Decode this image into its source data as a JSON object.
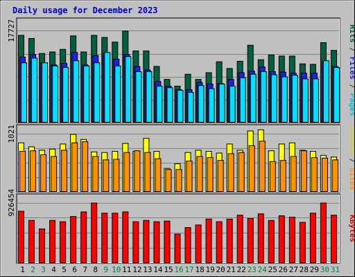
{
  "chart_data": [
    {
      "type": "bar",
      "title": "Daily usage for December 2023",
      "categories": [
        "1",
        "2",
        "3",
        "4",
        "5",
        "6",
        "7",
        "8",
        "9",
        "10",
        "11",
        "12",
        "13",
        "14",
        "15",
        "16",
        "17",
        "18",
        "19",
        "20",
        "21",
        "22",
        "23",
        "24",
        "25",
        "26",
        "27",
        "28",
        "29",
        "30",
        "31"
      ],
      "weekend_days": [
        "2",
        "3",
        "9",
        "10",
        "16",
        "17",
        "23",
        "24",
        "30",
        "31"
      ],
      "ytick_label": "17727",
      "ytick_value": 17727,
      "ylim": [
        0,
        20180
      ],
      "series": [
        {
          "name": "Hits",
          "color": "#006040",
          "values": [
            16900,
            16300,
            13400,
            13700,
            14200,
            16800,
            13700,
            16900,
            16500,
            15600,
            17727,
            13900,
            13900,
            10900,
            8400,
            7100,
            9400,
            8400,
            9700,
            11800,
            10500,
            11900,
            15000,
            12200,
            13100,
            12900,
            12900,
            11400,
            11300,
            15500,
            14000
          ]
        },
        {
          "name": "Files",
          "color": "#2020e0",
          "values": [
            12700,
            13200,
            11600,
            11200,
            11500,
            13600,
            11200,
            13000,
            13400,
            12300,
            13200,
            10900,
            10200,
            8000,
            7100,
            6400,
            6400,
            7800,
            7500,
            7600,
            8400,
            9700,
            10000,
            10800,
            9900,
            9800,
            9600,
            9600,
            9600,
            11700,
            10900
          ]
        },
        {
          "name": "Pages",
          "color": "#00e0ff",
          "values": [
            11600,
            12500,
            11600,
            11000,
            10700,
            12000,
            11000,
            11600,
            13600,
            11000,
            12800,
            9900,
            9900,
            7100,
            6800,
            6300,
            5900,
            7200,
            6600,
            7500,
            7100,
            8700,
            9400,
            9900,
            9300,
            8900,
            9200,
            8500,
            8500,
            12000,
            10700
          ]
        }
      ],
      "ylabel_parts": [
        {
          "text": "Hits",
          "color": "#006040"
        },
        {
          "text": " / ",
          "color": "#303030"
        },
        {
          "text": "Files",
          "color": "#2020e0"
        },
        {
          "text": " / ",
          "color": "#303030"
        },
        {
          "text": "Pages",
          "color": "#00c0e0"
        }
      ]
    },
    {
      "type": "bar",
      "ytick_label": "1021",
      "ytick_value": 1021,
      "ylim": [
        0,
        1185
      ],
      "series": [
        {
          "name": "Visits",
          "color": "#ffff00",
          "values": [
            870,
            800,
            740,
            760,
            850,
            1020,
            930,
            710,
            700,
            720,
            860,
            720,
            950,
            720,
            420,
            500,
            700,
            740,
            720,
            690,
            850,
            740,
            1080,
            1100,
            730,
            850,
            870,
            740,
            720,
            650,
            620
          ]
        },
        {
          "name": "Sites",
          "color": "#ff9000",
          "values": [
            720,
            730,
            660,
            630,
            740,
            870,
            890,
            630,
            570,
            580,
            700,
            730,
            700,
            590,
            400,
            400,
            550,
            630,
            610,
            560,
            680,
            700,
            820,
            900,
            540,
            560,
            630,
            730,
            610,
            600,
            570
          ]
        }
      ],
      "ylabel_parts": [
        {
          "text": "Visits",
          "color": "#e0d000"
        },
        {
          "text": " / ",
          "color": "#303030"
        },
        {
          "text": "Sites",
          "color": "#ff9000"
        }
      ]
    },
    {
      "type": "bar",
      "ytick_label": "926454",
      "ytick_value": 926454,
      "ylim": [
        0,
        1060000
      ],
      "series": [
        {
          "name": "KBytes",
          "color": "#ff0000",
          "values": [
            800000,
            660000,
            530000,
            660000,
            640000,
            720000,
            790000,
            926454,
            770000,
            770000,
            790000,
            640000,
            660000,
            640000,
            650000,
            450000,
            550000,
            590000,
            680000,
            640000,
            680000,
            740000,
            690000,
            760000,
            660000,
            730000,
            710000,
            630000,
            770000,
            926000,
            740000
          ]
        }
      ],
      "ylabel_parts": [
        {
          "text": "KBytes",
          "color": "#e00000"
        }
      ]
    }
  ],
  "colors": {
    "background": "#c0c0c0",
    "plot_background": "#c0c0c0",
    "title": "#0000c0",
    "weekday_label": "#000000",
    "weekend_label": "#008040"
  }
}
